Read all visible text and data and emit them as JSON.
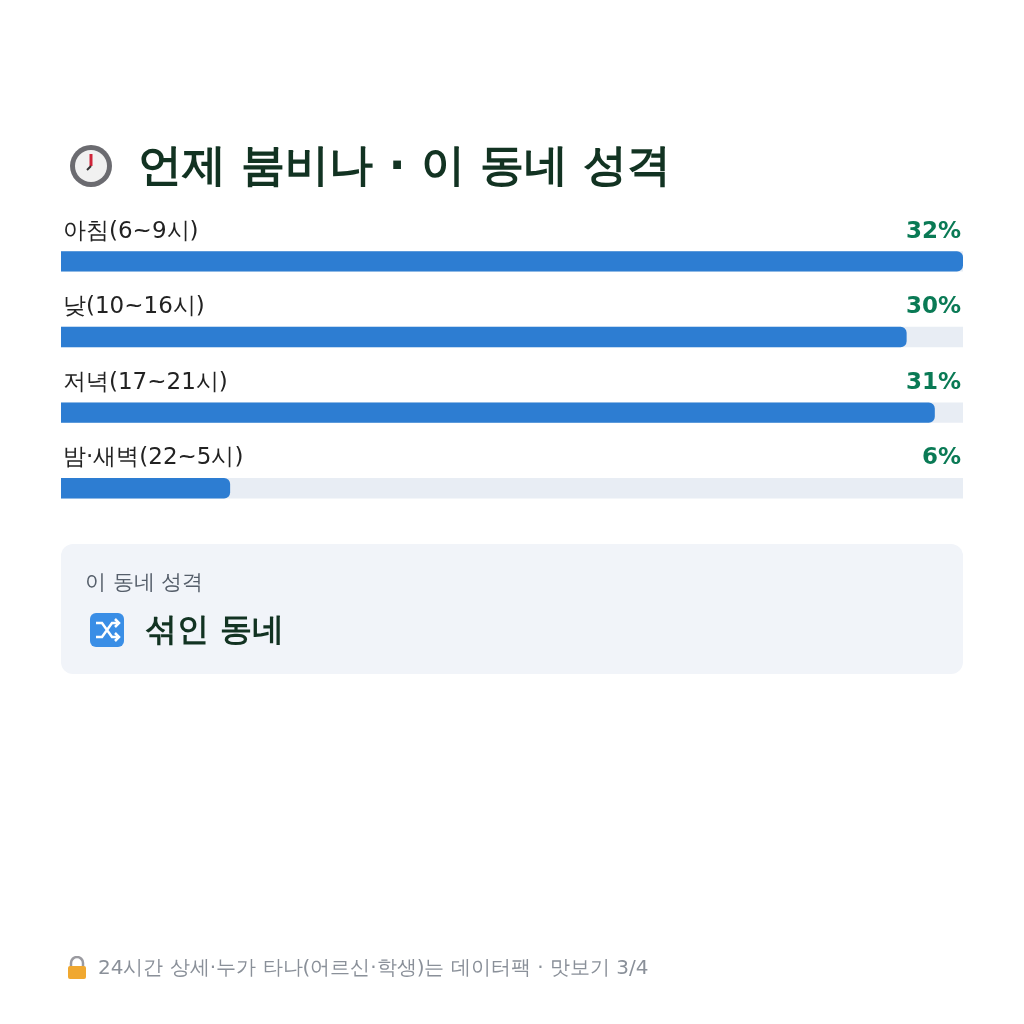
{
  "chart_data": {
    "type": "bar",
    "orientation": "horizontal",
    "title": "언제 붐비나 · 이 동네 성격",
    "categories": [
      "아침(6~9시)",
      "낮(10~16시)",
      "저녁(17~21시)",
      "밤·새벽(22~5시)"
    ],
    "values": [
      32,
      30,
      31,
      6
    ],
    "value_labels": [
      "32%",
      "30%",
      "31%",
      "6%"
    ],
    "color": "#2d7dd2",
    "xlim": [
      0,
      32
    ],
    "annotations": [
      "이 동네 성격",
      "섞인 동네",
      "24시간 상세·누가 타나(어르신·학생)는 데이터팩 · 맛보기 3/4"
    ]
  }
}
